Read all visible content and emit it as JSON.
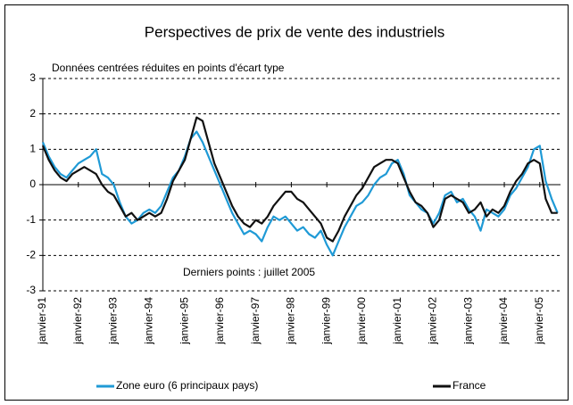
{
  "chart_data": {
    "type": "line",
    "title": "Perspectives de prix de vente des industriels",
    "subtitle": "Données centrées réduites en points d'écart type",
    "annotation": "Derniers points : juillet 2005",
    "x": [
      "1991-01",
      "1991-03",
      "1991-05",
      "1991-07",
      "1991-09",
      "1991-11",
      "1992-01",
      "1992-03",
      "1992-05",
      "1992-07",
      "1992-09",
      "1992-11",
      "1993-01",
      "1993-03",
      "1993-05",
      "1993-07",
      "1993-09",
      "1993-11",
      "1994-01",
      "1994-03",
      "1994-05",
      "1994-07",
      "1994-09",
      "1994-11",
      "1995-01",
      "1995-03",
      "1995-05",
      "1995-07",
      "1995-09",
      "1995-11",
      "1996-01",
      "1996-03",
      "1996-05",
      "1996-07",
      "1996-09",
      "1996-11",
      "1997-01",
      "1997-03",
      "1997-05",
      "1997-07",
      "1997-09",
      "1997-11",
      "1998-01",
      "1998-03",
      "1998-05",
      "1998-07",
      "1998-09",
      "1998-11",
      "1999-01",
      "1999-03",
      "1999-05",
      "1999-07",
      "1999-09",
      "1999-11",
      "2000-01",
      "2000-03",
      "2000-05",
      "2000-07",
      "2000-09",
      "2000-11",
      "2001-01",
      "2001-03",
      "2001-05",
      "2001-07",
      "2001-09",
      "2001-11",
      "2002-01",
      "2002-03",
      "2002-05",
      "2002-07",
      "2002-09",
      "2002-11",
      "2003-01",
      "2003-03",
      "2003-05",
      "2003-07",
      "2003-09",
      "2003-11",
      "2004-01",
      "2004-03",
      "2004-05",
      "2004-07",
      "2004-09",
      "2004-11",
      "2005-01",
      "2005-03",
      "2005-05",
      "2005-07"
    ],
    "series": [
      {
        "name": "Zone euro (6 principaux pays)",
        "color": "#1f9ad6",
        "values": [
          1.2,
          0.8,
          0.5,
          0.3,
          0.2,
          0.4,
          0.6,
          0.7,
          0.8,
          1.0,
          0.3,
          0.2,
          0.0,
          -0.5,
          -0.9,
          -1.1,
          -1.0,
          -0.8,
          -0.7,
          -0.8,
          -0.6,
          -0.2,
          0.2,
          0.4,
          0.8,
          1.3,
          1.5,
          1.2,
          0.8,
          0.4,
          0.0,
          -0.4,
          -0.8,
          -1.1,
          -1.4,
          -1.3,
          -1.4,
          -1.6,
          -1.2,
          -0.9,
          -1.0,
          -0.9,
          -1.1,
          -1.3,
          -1.2,
          -1.4,
          -1.5,
          -1.3,
          -1.7,
          -2.0,
          -1.6,
          -1.2,
          -0.9,
          -0.6,
          -0.5,
          -0.3,
          0.0,
          0.2,
          0.3,
          0.6,
          0.7,
          0.3,
          -0.3,
          -0.5,
          -0.7,
          -0.8,
          -1.1,
          -0.8,
          -0.3,
          -0.2,
          -0.5,
          -0.4,
          -0.7,
          -0.9,
          -1.3,
          -0.7,
          -0.8,
          -0.9,
          -0.7,
          -0.3,
          -0.1,
          0.2,
          0.5,
          1.0,
          1.1,
          0.1,
          -0.4,
          -0.8
        ]
      },
      {
        "name": "France",
        "color": "#111111",
        "values": [
          1.1,
          0.7,
          0.4,
          0.2,
          0.1,
          0.3,
          0.4,
          0.5,
          0.4,
          0.3,
          0.0,
          -0.2,
          -0.3,
          -0.6,
          -0.9,
          -0.8,
          -1.0,
          -0.9,
          -0.8,
          -0.9,
          -0.8,
          -0.4,
          0.1,
          0.4,
          0.7,
          1.3,
          1.9,
          1.8,
          1.2,
          0.6,
          0.2,
          -0.2,
          -0.6,
          -0.9,
          -1.1,
          -1.2,
          -1.0,
          -1.1,
          -0.9,
          -0.6,
          -0.4,
          -0.2,
          -0.2,
          -0.4,
          -0.5,
          -0.7,
          -0.9,
          -1.1,
          -1.5,
          -1.6,
          -1.3,
          -0.9,
          -0.6,
          -0.3,
          -0.1,
          0.2,
          0.5,
          0.6,
          0.7,
          0.7,
          0.6,
          0.2,
          -0.2,
          -0.5,
          -0.6,
          -0.8,
          -1.2,
          -1.0,
          -0.4,
          -0.3,
          -0.4,
          -0.5,
          -0.8,
          -0.7,
          -0.5,
          -0.9,
          -0.7,
          -0.8,
          -0.6,
          -0.2,
          0.1,
          0.3,
          0.6,
          0.7,
          0.6,
          -0.4,
          -0.8,
          -0.8
        ]
      }
    ],
    "xlim": [
      "1991-01",
      "2005-08"
    ],
    "xticks": [
      {
        "value": "1991-01",
        "label": "janvier-91"
      },
      {
        "value": "1992-01",
        "label": "janvier-92"
      },
      {
        "value": "1993-01",
        "label": "janvier-93"
      },
      {
        "value": "1994-01",
        "label": "janvier-94"
      },
      {
        "value": "1995-01",
        "label": "janvier-95"
      },
      {
        "value": "1996-01",
        "label": "janvier-96"
      },
      {
        "value": "1997-01",
        "label": "janvier-97"
      },
      {
        "value": "1998-01",
        "label": "janvier-98"
      },
      {
        "value": "1999-01",
        "label": "janvier-99"
      },
      {
        "value": "2000-01",
        "label": "janvier-00"
      },
      {
        "value": "2001-01",
        "label": "janvier-01"
      },
      {
        "value": "2002-01",
        "label": "janvier-02"
      },
      {
        "value": "2003-01",
        "label": "janvier-03"
      },
      {
        "value": "2004-01",
        "label": "janvier-04"
      },
      {
        "value": "2005-01",
        "label": "janvier-05"
      }
    ],
    "ylim": [
      -3,
      3
    ],
    "yticks": [
      -3,
      -2,
      -1,
      0,
      1,
      2,
      3
    ],
    "grid": true
  }
}
